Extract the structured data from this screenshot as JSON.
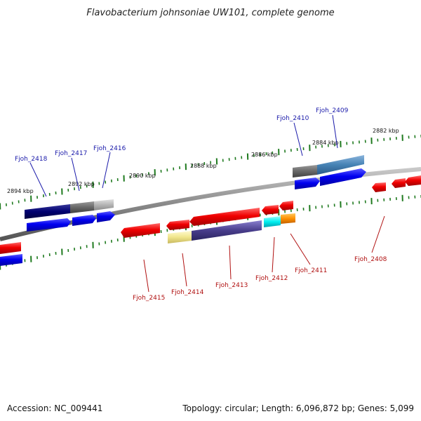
{
  "title": "Flavobacterium johnsoniae UW101, complete genome",
  "footer": {
    "accession": "Accession: NC_009441",
    "summary": "Topology: circular; Length: 6,096,872 bp; Genes: 5,099"
  },
  "colors": {
    "backbone": "#8a8a8a",
    "tick": "#1f7a1f",
    "forward_cds": "#0000f0",
    "reverse_cds": "#f00000",
    "label_forward": "#1a1aaa",
    "label_reverse": "#b01010"
  },
  "tick_labels": [
    "2894 kbp",
    "2892 kbp",
    "2890 kbp",
    "2888 kbp",
    "2886 kbp",
    "2884 kbp",
    "2882 kbp"
  ],
  "genes_top": [
    {
      "locus": "Fjoh_2418"
    },
    {
      "locus": "Fjoh_2417"
    },
    {
      "locus": "Fjoh_2416"
    },
    {
      "locus": "Fjoh_2410"
    },
    {
      "locus": "Fjoh_2409"
    }
  ],
  "genes_bottom": [
    {
      "locus": "Fjoh_2415"
    },
    {
      "locus": "Fjoh_2414"
    },
    {
      "locus": "Fjoh_2413"
    },
    {
      "locus": "Fjoh_2412"
    },
    {
      "locus": "Fjoh_2411"
    },
    {
      "locus": "Fjoh_2408"
    }
  ]
}
